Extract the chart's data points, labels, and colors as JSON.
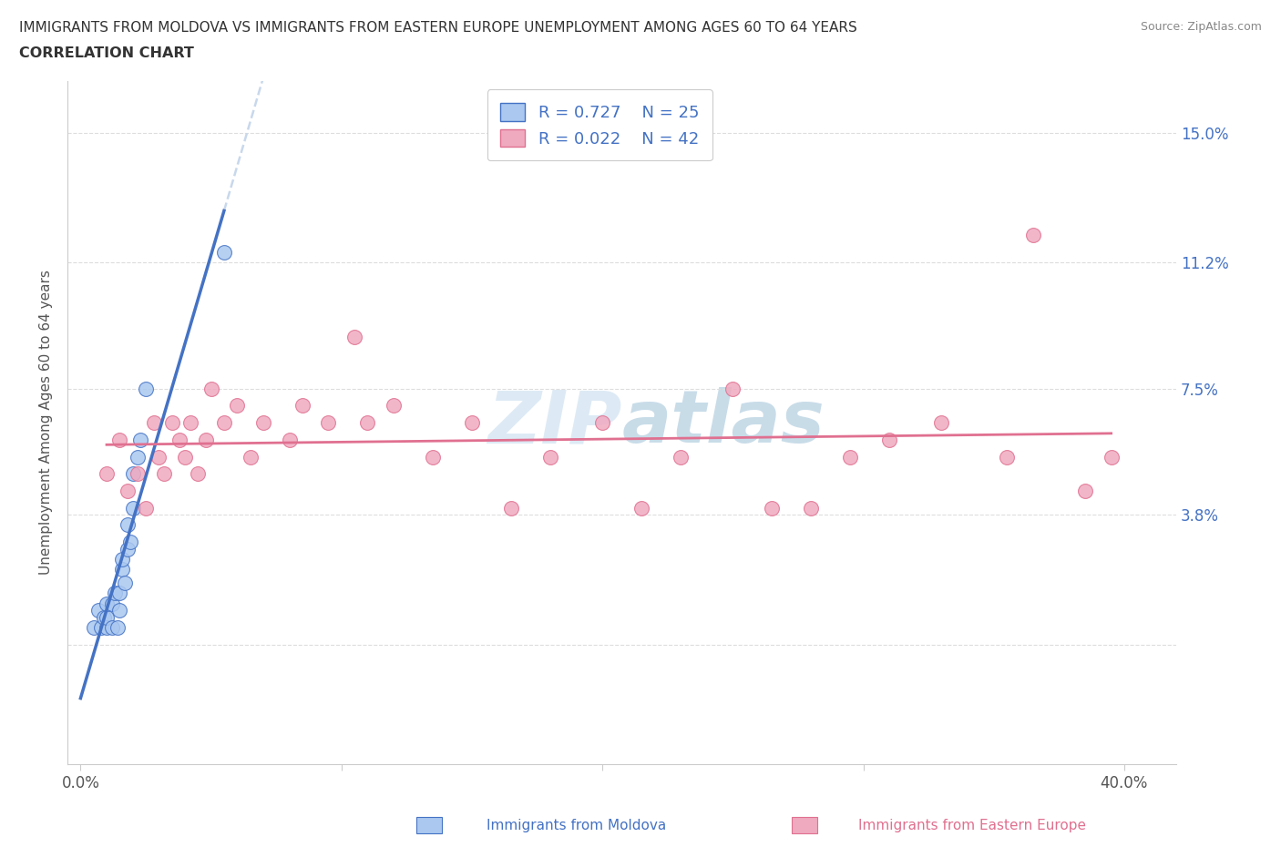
{
  "title_line1": "IMMIGRANTS FROM MOLDOVA VS IMMIGRANTS FROM EASTERN EUROPE UNEMPLOYMENT AMONG AGES 60 TO 64 YEARS",
  "title_line2": "CORRELATION CHART",
  "source_text": "Source: ZipAtlas.com",
  "ylabel": "Unemployment Among Ages 60 to 64 years",
  "xlabel_moldova": "Immigrants from Moldova",
  "xlabel_eastern": "Immigrants from Eastern Europe",
  "xlim": [
    -0.005,
    0.42
  ],
  "ylim": [
    -0.035,
    0.165
  ],
  "yticks": [
    0.0,
    0.038,
    0.075,
    0.112,
    0.15
  ],
  "ytick_labels": [
    "",
    "3.8%",
    "7.5%",
    "11.2%",
    "15.0%"
  ],
  "xticks": [
    0.0,
    0.1,
    0.2,
    0.3,
    0.4
  ],
  "xtick_labels_show": [
    "0.0%",
    "",
    "",
    "",
    "40.0%"
  ],
  "R_moldova": 0.727,
  "N_moldova": 25,
  "R_eastern": 0.022,
  "N_eastern": 42,
  "color_moldova": "#aac8f0",
  "color_eastern": "#f0aac0",
  "line_color_moldova": "#4472c4",
  "line_color_eastern": "#e07090",
  "line_color_text": "#4472c4",
  "dashed_color": "#c8d8ec",
  "watermark_color": "#ddeaf5",
  "scatter_moldova_x": [
    0.005,
    0.007,
    0.008,
    0.009,
    0.01,
    0.01,
    0.01,
    0.012,
    0.012,
    0.013,
    0.014,
    0.015,
    0.015,
    0.016,
    0.016,
    0.017,
    0.018,
    0.018,
    0.019,
    0.02,
    0.02,
    0.022,
    0.023,
    0.025,
    0.055
  ],
  "scatter_moldova_y": [
    0.005,
    0.01,
    0.005,
    0.008,
    0.005,
    0.008,
    0.012,
    0.012,
    0.005,
    0.015,
    0.005,
    0.01,
    0.015,
    0.022,
    0.025,
    0.018,
    0.028,
    0.035,
    0.03,
    0.04,
    0.05,
    0.055,
    0.06,
    0.075,
    0.115
  ],
  "scatter_eastern_x": [
    0.01,
    0.015,
    0.018,
    0.022,
    0.025,
    0.028,
    0.03,
    0.032,
    0.035,
    0.038,
    0.04,
    0.042,
    0.045,
    0.048,
    0.05,
    0.055,
    0.06,
    0.065,
    0.07,
    0.08,
    0.085,
    0.095,
    0.105,
    0.11,
    0.12,
    0.135,
    0.15,
    0.165,
    0.18,
    0.2,
    0.215,
    0.23,
    0.25,
    0.265,
    0.28,
    0.295,
    0.31,
    0.33,
    0.355,
    0.365,
    0.385,
    0.395
  ],
  "scatter_eastern_y": [
    0.05,
    0.06,
    0.045,
    0.05,
    0.04,
    0.065,
    0.055,
    0.05,
    0.065,
    0.06,
    0.055,
    0.065,
    0.05,
    0.06,
    0.075,
    0.065,
    0.07,
    0.055,
    0.065,
    0.06,
    0.07,
    0.065,
    0.09,
    0.065,
    0.07,
    0.055,
    0.065,
    0.04,
    0.055,
    0.065,
    0.04,
    0.055,
    0.075,
    0.04,
    0.04,
    0.055,
    0.06,
    0.065,
    0.055,
    0.12,
    0.045,
    0.055
  ]
}
